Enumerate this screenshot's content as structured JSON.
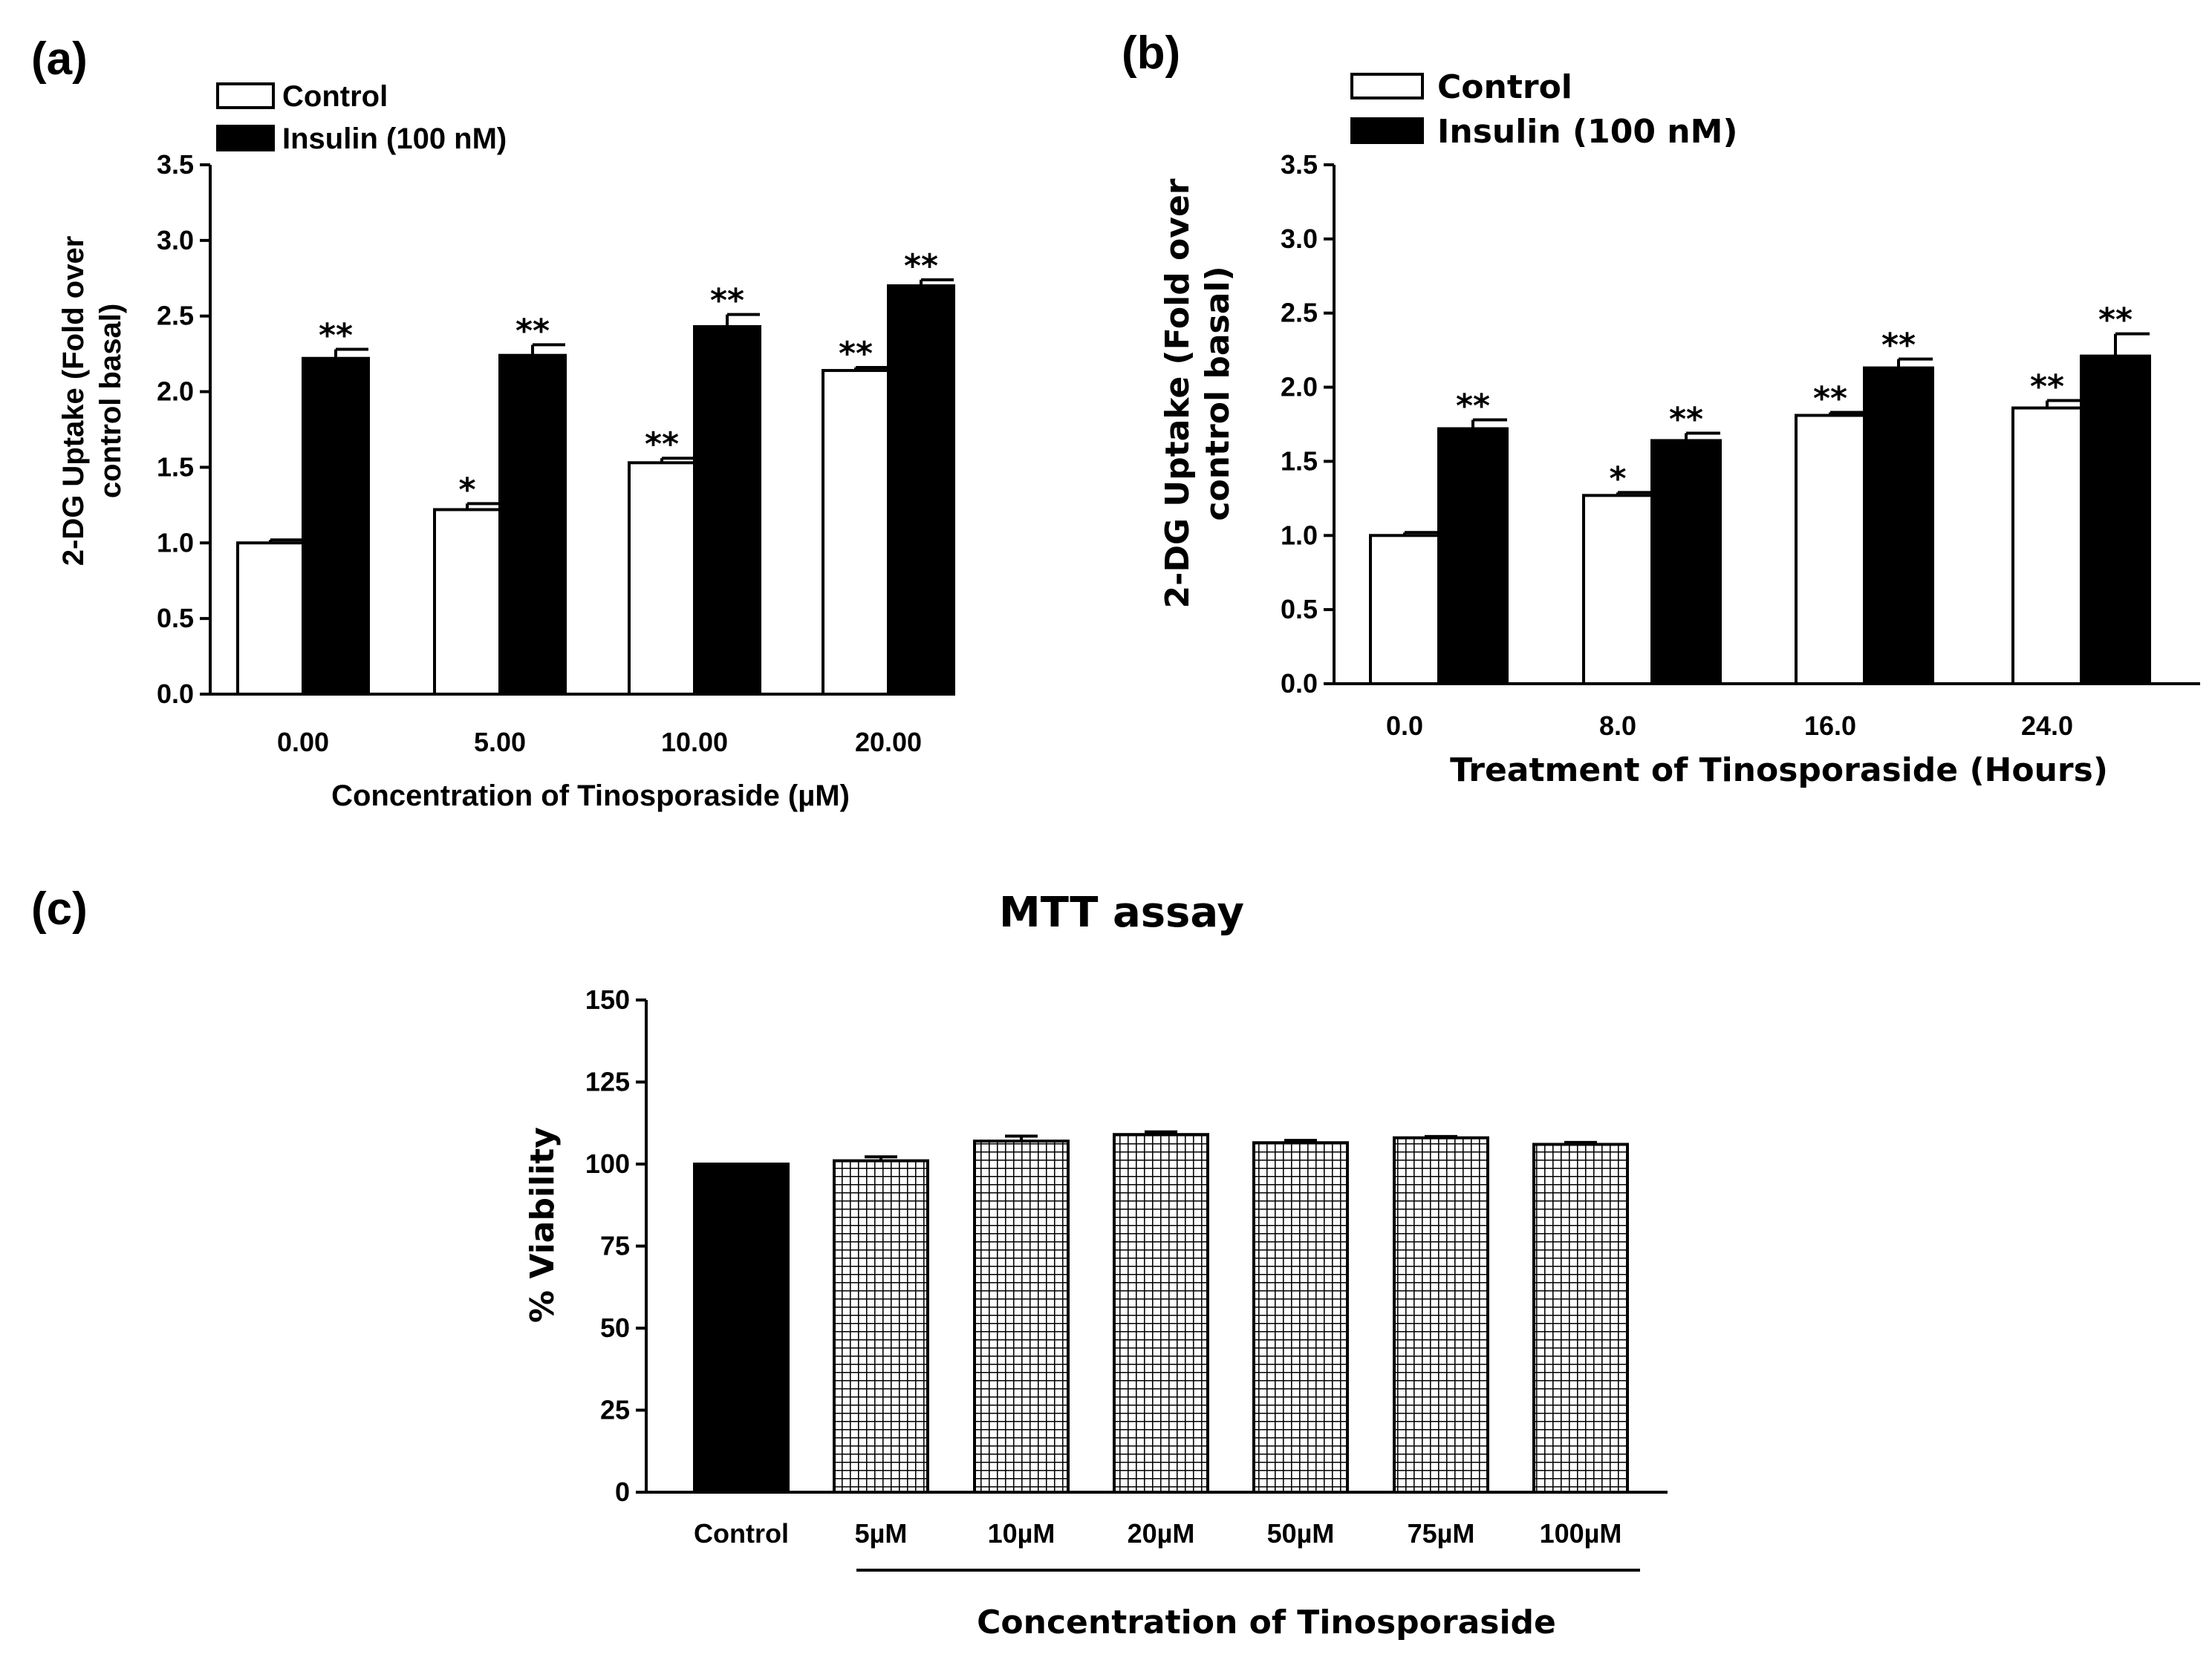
{
  "panels": {
    "a": "(a)",
    "b": "(b)",
    "c": "(c)"
  },
  "chart_data": [
    {
      "id": "a",
      "type": "bar",
      "categories": [
        "0.00",
        "5.00",
        "10.00",
        "20.00"
      ],
      "series": [
        {
          "name": "Control",
          "values": [
            1.0,
            1.22,
            1.53,
            2.14
          ],
          "errors": [
            0.02,
            0.04,
            0.03,
            0.02
          ],
          "significance": [
            "",
            "*",
            "**",
            "**"
          ],
          "color": "#ffffff"
        },
        {
          "name": "Insulin (100 nM)",
          "values": [
            2.22,
            2.24,
            2.43,
            2.7
          ],
          "errors": [
            0.06,
            0.07,
            0.08,
            0.04
          ],
          "significance": [
            "**",
            "**",
            "**",
            "**"
          ],
          "color": "#000000"
        }
      ],
      "xlabel": "Concentration of Tinosporaside (µM)",
      "ylabel_lines": [
        "2-DG Uptake (Fold over",
        "control basal)"
      ],
      "ylim": [
        0,
        3.5
      ],
      "yticks": [
        "0.0",
        "0.5",
        "1.0",
        "1.5",
        "2.0",
        "2.5",
        "3.0",
        "3.5"
      ],
      "legend_position": "top-left"
    },
    {
      "id": "b",
      "type": "bar",
      "categories": [
        "0.0",
        "8.0",
        "16.0",
        "24.0"
      ],
      "series": [
        {
          "name": "Control",
          "values": [
            1.0,
            1.27,
            1.81,
            1.86
          ],
          "errors": [
            0.02,
            0.02,
            0.02,
            0.05
          ],
          "significance": [
            "",
            "*",
            "**",
            "**"
          ],
          "color": "#ffffff"
        },
        {
          "name": "Insulin (100 nM)",
          "values": [
            1.72,
            1.64,
            2.13,
            2.21
          ],
          "errors": [
            0.06,
            0.05,
            0.06,
            0.15
          ],
          "significance": [
            "**",
            "**",
            "**",
            "**"
          ],
          "color": "#000000"
        }
      ],
      "xlabel": "Treatment of Tinosporaside (Hours)",
      "ylabel_lines": [
        "2-DG Uptake (Fold over",
        "control basal)"
      ],
      "ylim": [
        0,
        3.5
      ],
      "yticks": [
        "0.0",
        "0.5",
        "1.0",
        "1.5",
        "2.0",
        "2.5",
        "3.0",
        "3.5"
      ],
      "legend_position": "top-left"
    },
    {
      "id": "c",
      "type": "bar",
      "title": "MTT assay",
      "categories": [
        "Control",
        "5µM",
        "10µM",
        "20µM",
        "50µM",
        "75µM",
        "100µM"
      ],
      "values": [
        100,
        101,
        107,
        109,
        106.5,
        108,
        106
      ],
      "errors": [
        0,
        1.2,
        1.5,
        0.8,
        0.7,
        0.4,
        0.6
      ],
      "fills": [
        "solid-black",
        "grid",
        "grid",
        "grid",
        "grid",
        "grid",
        "grid"
      ],
      "xlabel": "Concentration of Tinosporaside",
      "ylabel": "% Viability",
      "ylim": [
        0,
        150
      ],
      "yticks": [
        "0",
        "25",
        "50",
        "75",
        "100",
        "125",
        "150"
      ]
    }
  ]
}
